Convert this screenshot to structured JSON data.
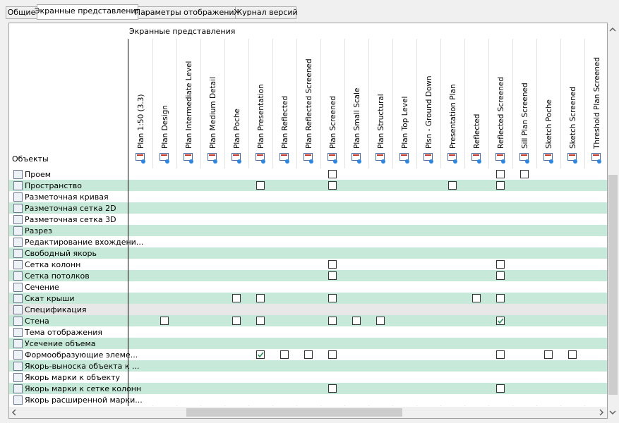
{
  "tabs": [
    {
      "label": "Общие"
    },
    {
      "label": "Экранные представления",
      "active": true
    },
    {
      "label": "Параметры отображения"
    },
    {
      "label": "Журнал версий"
    }
  ],
  "grid": {
    "group_header": "Экранные представления",
    "row_header": "Объекты",
    "columns": [
      "Plan 1:50 (3.3)",
      "Plan Design",
      "Plan Intermediate Level",
      "Plan Medium Detail",
      "Plan Poche",
      "Plan Presentation",
      "Plan Reflected",
      "Plan Reflected Screened",
      "Plan Screened",
      "Plan Small Scale",
      "Plan Structural",
      "Plan Top Level",
      "Plsn - Ground Down",
      "Presentation Plan",
      "Reflected",
      "Reflected Screened",
      "Sill Plan Screened",
      "Sketch Poche",
      "Sketch Screened",
      "Threshold Plan Screened"
    ],
    "rows": [
      {
        "label": "Проем",
        "cells": [
          null,
          null,
          null,
          null,
          null,
          null,
          null,
          null,
          false,
          null,
          null,
          null,
          null,
          null,
          null,
          false,
          false,
          null,
          null,
          null
        ]
      },
      {
        "label": "Пространство",
        "cells": [
          null,
          null,
          null,
          null,
          null,
          false,
          null,
          null,
          false,
          null,
          null,
          null,
          null,
          false,
          null,
          false,
          null,
          null,
          null,
          null
        ]
      },
      {
        "label": "Разметочная кривая",
        "cells": [
          null,
          null,
          null,
          null,
          null,
          null,
          null,
          null,
          null,
          null,
          null,
          null,
          null,
          null,
          null,
          null,
          null,
          null,
          null,
          null
        ]
      },
      {
        "label": "Разметочная сетка 2D",
        "cells": [
          null,
          null,
          null,
          null,
          null,
          null,
          null,
          null,
          null,
          null,
          null,
          null,
          null,
          null,
          null,
          null,
          null,
          null,
          null,
          null
        ]
      },
      {
        "label": "Разметочная сетка 3D",
        "cells": [
          null,
          null,
          null,
          null,
          null,
          null,
          null,
          null,
          null,
          null,
          null,
          null,
          null,
          null,
          null,
          null,
          null,
          null,
          null,
          null
        ]
      },
      {
        "label": "Разрез",
        "cells": [
          null,
          null,
          null,
          null,
          null,
          null,
          null,
          null,
          null,
          null,
          null,
          null,
          null,
          null,
          null,
          null,
          null,
          null,
          null,
          null
        ]
      },
      {
        "label": "Редактирование вхождени...",
        "cells": [
          null,
          null,
          null,
          null,
          null,
          null,
          null,
          null,
          null,
          null,
          null,
          null,
          null,
          null,
          null,
          null,
          null,
          null,
          null,
          null
        ]
      },
      {
        "label": "Свободный якорь",
        "cells": [
          null,
          null,
          null,
          null,
          null,
          null,
          null,
          null,
          null,
          null,
          null,
          null,
          null,
          null,
          null,
          null,
          null,
          null,
          null,
          null
        ]
      },
      {
        "label": "Сетка колонн",
        "cells": [
          null,
          null,
          null,
          null,
          null,
          null,
          null,
          null,
          false,
          null,
          null,
          null,
          null,
          null,
          null,
          false,
          null,
          null,
          null,
          null
        ]
      },
      {
        "label": "Сетка потолков",
        "cells": [
          null,
          null,
          null,
          null,
          null,
          null,
          null,
          null,
          false,
          null,
          null,
          null,
          null,
          null,
          null,
          false,
          null,
          null,
          null,
          null
        ]
      },
      {
        "label": "Сечение",
        "cells": [
          null,
          null,
          null,
          null,
          null,
          null,
          null,
          null,
          null,
          null,
          null,
          null,
          null,
          null,
          null,
          null,
          null,
          null,
          null,
          null
        ]
      },
      {
        "label": "Скат крыши",
        "cells": [
          null,
          null,
          null,
          null,
          false,
          false,
          null,
          null,
          false,
          null,
          null,
          null,
          null,
          null,
          false,
          false,
          null,
          null,
          null,
          null
        ]
      },
      {
        "label": "Спецификация",
        "selected": true,
        "cells": [
          null,
          null,
          null,
          null,
          null,
          null,
          null,
          null,
          null,
          null,
          null,
          null,
          null,
          null,
          null,
          null,
          null,
          null,
          null,
          null
        ]
      },
      {
        "label": "Стена",
        "cells": [
          null,
          false,
          null,
          null,
          false,
          false,
          null,
          null,
          false,
          false,
          false,
          null,
          null,
          null,
          null,
          true,
          null,
          null,
          null,
          null
        ]
      },
      {
        "label": "Тема отображения",
        "cells": [
          null,
          null,
          null,
          null,
          null,
          null,
          null,
          null,
          null,
          null,
          null,
          null,
          null,
          null,
          null,
          null,
          null,
          null,
          null,
          null
        ]
      },
      {
        "label": "Усечение объема",
        "cells": [
          null,
          null,
          null,
          null,
          null,
          null,
          null,
          null,
          null,
          null,
          null,
          null,
          null,
          null,
          null,
          null,
          null,
          null,
          null,
          null
        ]
      },
      {
        "label": "Формообразующие элеме...",
        "cells": [
          null,
          null,
          null,
          null,
          null,
          true,
          false,
          false,
          false,
          null,
          null,
          null,
          null,
          null,
          null,
          false,
          null,
          false,
          false,
          null
        ]
      },
      {
        "label": "Якорь-выноска объекта к ...",
        "cells": [
          null,
          null,
          null,
          null,
          null,
          null,
          null,
          null,
          null,
          null,
          null,
          null,
          null,
          null,
          null,
          null,
          null,
          null,
          null,
          null
        ]
      },
      {
        "label": "Якорь марки к объекту",
        "cells": [
          null,
          null,
          null,
          null,
          null,
          null,
          null,
          null,
          null,
          null,
          null,
          null,
          null,
          null,
          null,
          null,
          null,
          null,
          null,
          null
        ]
      },
      {
        "label": "Якорь марки к сетке колонн",
        "cells": [
          null,
          null,
          null,
          null,
          null,
          null,
          null,
          null,
          false,
          null,
          null,
          null,
          null,
          null,
          null,
          false,
          null,
          null,
          null,
          null
        ]
      },
      {
        "label": "Якорь расширенной марки...",
        "cells": [
          null,
          null,
          null,
          null,
          null,
          null,
          null,
          null,
          null,
          null,
          null,
          null,
          null,
          null,
          null,
          null,
          null,
          null,
          null,
          null
        ]
      }
    ]
  }
}
